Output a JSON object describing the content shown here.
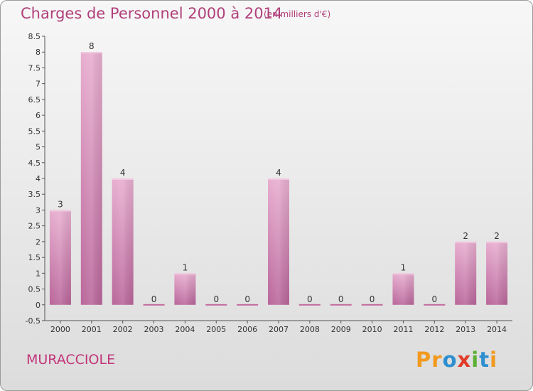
{
  "chart_data": {
    "type": "bar",
    "title": "Charges de Personnel 2000 à 2014",
    "subtitle": "(en milliers d'€)",
    "categories": [
      "2000",
      "2001",
      "2002",
      "2003",
      "2004",
      "2005",
      "2006",
      "2007",
      "2008",
      "2009",
      "2010",
      "2011",
      "2012",
      "2013",
      "2014"
    ],
    "values": [
      3,
      8,
      4,
      0,
      1,
      0,
      0,
      4,
      0,
      0,
      0,
      1,
      0,
      2,
      2
    ],
    "data_labels": [
      "3",
      "8",
      "4",
      "0",
      "1",
      "0",
      "0",
      "4",
      "0",
      "0",
      "0",
      "1",
      "0",
      "2",
      "2"
    ],
    "ylim": [
      -0.5,
      8.5
    ],
    "yticks": [
      -0.5,
      0,
      0.5,
      1,
      1.5,
      2,
      2.5,
      3,
      3.5,
      4,
      4.5,
      5,
      5.5,
      6,
      6.5,
      7,
      7.5,
      8,
      8.5
    ],
    "ytick_labels": [
      "-0.5",
      "0",
      "0.5",
      "1",
      "1.5",
      "2",
      "2.5",
      "3",
      "3.5",
      "4",
      "4.5",
      "5",
      "5.5",
      "6",
      "6.5",
      "7",
      "7.5",
      "8",
      "8.5"
    ],
    "xlabel": "",
    "ylabel": "",
    "grid": false,
    "bar_color": "#c46a9c",
    "bar_light_color": "#e8b0d0"
  },
  "footer": {
    "commune": "MURACCIOLE",
    "logo_letters": [
      {
        "char": "P",
        "color": "#f29a1f"
      },
      {
        "char": "r",
        "color": "#f29a1f"
      },
      {
        "char": "o",
        "color": "#2e8fd0"
      },
      {
        "char": "x",
        "color": "#e23b2a"
      },
      {
        "char": "i",
        "color": "#5bb135"
      },
      {
        "char": "t",
        "color": "#2e8fd0"
      },
      {
        "char": "i",
        "color": "#f29a1f"
      }
    ]
  },
  "colors": {
    "title": "#b0407a",
    "commune": "#c2357a",
    "axis": "#555555"
  }
}
